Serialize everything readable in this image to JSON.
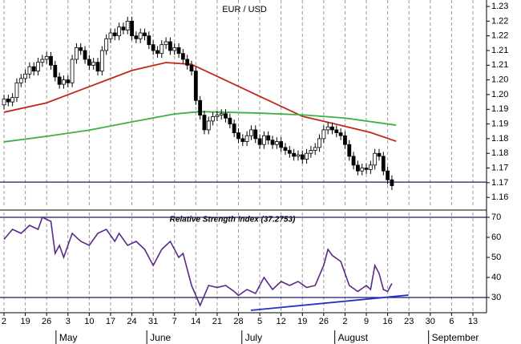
{
  "chart_data": [
    {
      "type": "candlestick",
      "title": "EUR / USD",
      "xlim": [
        -0.94,
        113.2
      ],
      "ylim": [
        1.1615,
        1.2322
      ],
      "yticks": [
        {
          "value": 1.23,
          "label": "1.23"
        },
        {
          "value": 1.225,
          "label": "1.22"
        },
        {
          "value": 1.22,
          "label": "1.22"
        },
        {
          "value": 1.215,
          "label": "1.21"
        },
        {
          "value": 1.21,
          "label": "1.21"
        },
        {
          "value": 1.205,
          "label": "1.20"
        },
        {
          "value": 1.2,
          "label": "1.20"
        },
        {
          "value": 1.195,
          "label": "1.19"
        },
        {
          "value": 1.19,
          "label": "1.19"
        },
        {
          "value": 1.185,
          "label": "1.18"
        },
        {
          "value": 1.18,
          "label": "1.18"
        },
        {
          "value": 1.175,
          "label": "1.17"
        },
        {
          "value": 1.17,
          "label": "1.17"
        },
        {
          "value": 1.165,
          "label": "1.16"
        }
      ],
      "hline": 1.1702,
      "open": [
        1.1965,
        1.1985,
        1.1975,
        1.199,
        1.204,
        1.2055,
        1.207,
        1.2095,
        1.208,
        1.211,
        1.212,
        1.213,
        1.21,
        1.206,
        1.2035,
        1.205,
        1.204,
        1.212,
        1.216,
        1.215,
        1.212,
        1.21,
        1.211,
        1.208,
        1.215,
        1.219,
        1.221,
        1.22,
        1.223,
        1.222,
        1.225,
        1.22,
        1.219,
        1.221,
        1.22,
        1.217,
        1.215,
        1.214,
        1.217,
        1.218,
        1.215,
        1.216,
        1.214,
        1.212,
        1.21,
        1.208,
        1.198,
        1.193,
        1.188,
        1.191,
        1.1925,
        1.193,
        1.1935,
        1.192,
        1.19,
        1.187,
        1.185,
        1.184,
        1.186,
        1.188,
        1.185,
        1.183,
        1.186,
        1.1845,
        1.183,
        1.184,
        1.182,
        1.181,
        1.18,
        1.179,
        1.1795,
        1.178,
        1.18,
        1.181,
        1.182,
        1.185,
        1.188,
        1.189,
        1.188,
        1.187,
        1.186,
        1.183,
        1.179,
        1.176,
        1.174,
        1.175,
        1.1745,
        1.176,
        1.18,
        1.179,
        1.174,
        1.171
      ],
      "high": [
        1.2,
        1.2,
        1.2005,
        1.2055,
        1.207,
        1.2085,
        1.211,
        1.211,
        1.2125,
        1.2135,
        1.2145,
        1.2145,
        1.2115,
        1.2075,
        1.2065,
        1.2065,
        1.2135,
        1.2175,
        1.2175,
        1.2165,
        1.2135,
        1.2125,
        1.2125,
        1.2165,
        1.2205,
        1.2225,
        1.2225,
        1.2245,
        1.2245,
        1.2265,
        1.2265,
        1.2215,
        1.2225,
        1.2225,
        1.2215,
        1.2185,
        1.2165,
        1.2185,
        1.2195,
        1.2195,
        1.2175,
        1.2175,
        1.2155,
        1.2135,
        1.2115,
        1.2095,
        1.1995,
        1.1945,
        1.1925,
        1.194,
        1.1945,
        1.195,
        1.195,
        1.1935,
        1.1915,
        1.1885,
        1.1865,
        1.1875,
        1.1895,
        1.1895,
        1.1865,
        1.1875,
        1.1875,
        1.186,
        1.1855,
        1.1855,
        1.1835,
        1.1825,
        1.1815,
        1.181,
        1.181,
        1.1815,
        1.1825,
        1.1835,
        1.1865,
        1.1895,
        1.1905,
        1.1905,
        1.1895,
        1.1885,
        1.1875,
        1.1845,
        1.1805,
        1.1775,
        1.1765,
        1.1765,
        1.1775,
        1.1815,
        1.1815,
        1.1805,
        1.1755,
        1.1725
      ],
      "low": [
        1.195,
        1.196,
        1.196,
        1.1975,
        1.2025,
        1.204,
        1.2055,
        1.2065,
        1.2065,
        1.2095,
        1.2105,
        1.2085,
        1.2045,
        1.202,
        1.202,
        1.2025,
        1.2025,
        1.2105,
        1.2135,
        1.2105,
        1.2085,
        1.2085,
        1.2065,
        1.2065,
        1.2135,
        1.2175,
        1.2185,
        1.2185,
        1.2205,
        1.2205,
        1.2185,
        1.2175,
        1.2175,
        1.2185,
        1.2155,
        1.2135,
        1.2125,
        1.2125,
        1.2155,
        1.2135,
        1.2135,
        1.2125,
        1.2105,
        1.2085,
        1.2065,
        1.1965,
        1.1915,
        1.1865,
        1.1865,
        1.1895,
        1.191,
        1.1915,
        1.1905,
        1.1885,
        1.1855,
        1.1835,
        1.1825,
        1.1825,
        1.1845,
        1.1835,
        1.1815,
        1.1815,
        1.183,
        1.1815,
        1.1815,
        1.1805,
        1.1795,
        1.1785,
        1.1775,
        1.1775,
        1.1765,
        1.1765,
        1.1785,
        1.1795,
        1.1805,
        1.1835,
        1.1865,
        1.1865,
        1.1855,
        1.1845,
        1.1815,
        1.1775,
        1.1745,
        1.1725,
        1.1725,
        1.173,
        1.173,
        1.1745,
        1.1775,
        1.1725,
        1.1695,
        1.1675
      ],
      "close": [
        1.1985,
        1.1975,
        1.199,
        1.204,
        1.2055,
        1.207,
        1.2095,
        1.208,
        1.211,
        1.212,
        1.213,
        1.21,
        1.206,
        1.2035,
        1.205,
        1.204,
        1.212,
        1.216,
        1.215,
        1.212,
        1.21,
        1.211,
        1.208,
        1.215,
        1.219,
        1.221,
        1.22,
        1.223,
        1.222,
        1.225,
        1.22,
        1.219,
        1.221,
        1.22,
        1.217,
        1.215,
        1.214,
        1.217,
        1.218,
        1.215,
        1.216,
        1.214,
        1.212,
        1.21,
        1.208,
        1.198,
        1.193,
        1.188,
        1.191,
        1.1925,
        1.193,
        1.1935,
        1.192,
        1.19,
        1.187,
        1.185,
        1.184,
        1.186,
        1.188,
        1.185,
        1.183,
        1.186,
        1.1845,
        1.183,
        1.184,
        1.182,
        1.181,
        1.18,
        1.179,
        1.1795,
        1.178,
        1.18,
        1.181,
        1.182,
        1.185,
        1.188,
        1.189,
        1.188,
        1.187,
        1.186,
        1.183,
        1.179,
        1.176,
        1.174,
        1.175,
        1.1745,
        1.176,
        1.18,
        1.179,
        1.174,
        1.171,
        1.169
      ],
      "series": [
        {
          "color": "#c0281c",
          "x": [
            0,
            10,
            20,
            30,
            38,
            44,
            50,
            60,
            70,
            78,
            86,
            92
          ],
          "values": [
            1.194,
            1.1972,
            1.2027,
            1.2082,
            1.2109,
            1.2103,
            1.2062,
            1.1994,
            1.1926,
            1.1899,
            1.1871,
            1.1841
          ]
        },
        {
          "color": "#3cb043",
          "x": [
            0,
            10,
            20,
            30,
            40,
            46,
            60,
            70,
            80,
            92
          ],
          "values": [
            1.1839,
            1.1858,
            1.1879,
            1.1907,
            1.1934,
            1.1942,
            1.1937,
            1.1931,
            1.192,
            1.1896
          ]
        }
      ]
    },
    {
      "type": "line",
      "title": "Relative Strength Index (37.2753)",
      "xlim": [
        -0.94,
        113.2
      ],
      "ylim": [
        22.4,
        72.4
      ],
      "yticks": [
        70,
        60,
        50,
        40,
        30
      ],
      "hlines": [
        70,
        30
      ],
      "xticks": [
        {
          "value": 0,
          "label": "2"
        },
        {
          "value": 5,
          "label": "19"
        },
        {
          "value": 10,
          "label": "26"
        },
        {
          "value": 15,
          "label": "3"
        },
        {
          "value": 20,
          "label": "10"
        },
        {
          "value": 25,
          "label": "17"
        },
        {
          "value": 30,
          "label": "24"
        },
        {
          "value": 35,
          "label": "31"
        },
        {
          "value": 40,
          "label": "7"
        },
        {
          "value": 45,
          "label": "14"
        },
        {
          "value": 50,
          "label": "21"
        },
        {
          "value": 55,
          "label": "28"
        },
        {
          "value": 60,
          "label": "5"
        },
        {
          "value": 65,
          "label": "12"
        },
        {
          "value": 70,
          "label": "19"
        },
        {
          "value": 75,
          "label": "26"
        },
        {
          "value": 80,
          "label": "2"
        },
        {
          "value": 85,
          "label": "9"
        },
        {
          "value": 90,
          "label": "16"
        },
        {
          "value": 95,
          "label": "23"
        },
        {
          "value": 100,
          "label": "30"
        },
        {
          "value": 105,
          "label": "6"
        },
        {
          "value": 110,
          "label": "13"
        }
      ],
      "months": [
        {
          "value": 12.2,
          "label": "May"
        },
        {
          "value": 33.5,
          "label": "June"
        },
        {
          "value": 55.8,
          "label": "July"
        },
        {
          "value": 77.6,
          "label": "August"
        },
        {
          "value": 99.6,
          "label": "September"
        }
      ],
      "trendline": {
        "x": [
          57.9,
          94.9
        ],
        "values": [
          23.6,
          31.2
        ],
        "color": "#2233cc"
      },
      "series": [
        {
          "color": "#5b2a86",
          "x": [
            0,
            2,
            4,
            6,
            8,
            9,
            11,
            12,
            13,
            14,
            16,
            18,
            20,
            22,
            24,
            26,
            27,
            29,
            31,
            33,
            35,
            37,
            39,
            41,
            42,
            44,
            46,
            48,
            50,
            52,
            54,
            55,
            57,
            59,
            61,
            63,
            65,
            67,
            69,
            71,
            73,
            75,
            76,
            77,
            79,
            81,
            83,
            85,
            86,
            87,
            88,
            89,
            90,
            91
          ],
          "values": [
            59,
            64,
            62,
            66,
            64,
            70,
            68,
            52,
            56,
            50,
            62,
            58,
            56,
            62,
            64,
            58,
            62,
            56,
            58,
            54,
            46,
            54,
            58,
            50,
            52,
            36,
            26,
            36,
            35,
            36,
            33,
            31,
            34,
            32,
            40,
            34,
            38,
            36,
            38,
            35,
            36,
            46,
            54,
            51,
            48,
            36,
            33,
            36,
            34,
            46,
            42,
            34,
            33,
            37
          ]
        }
      ]
    }
  ]
}
